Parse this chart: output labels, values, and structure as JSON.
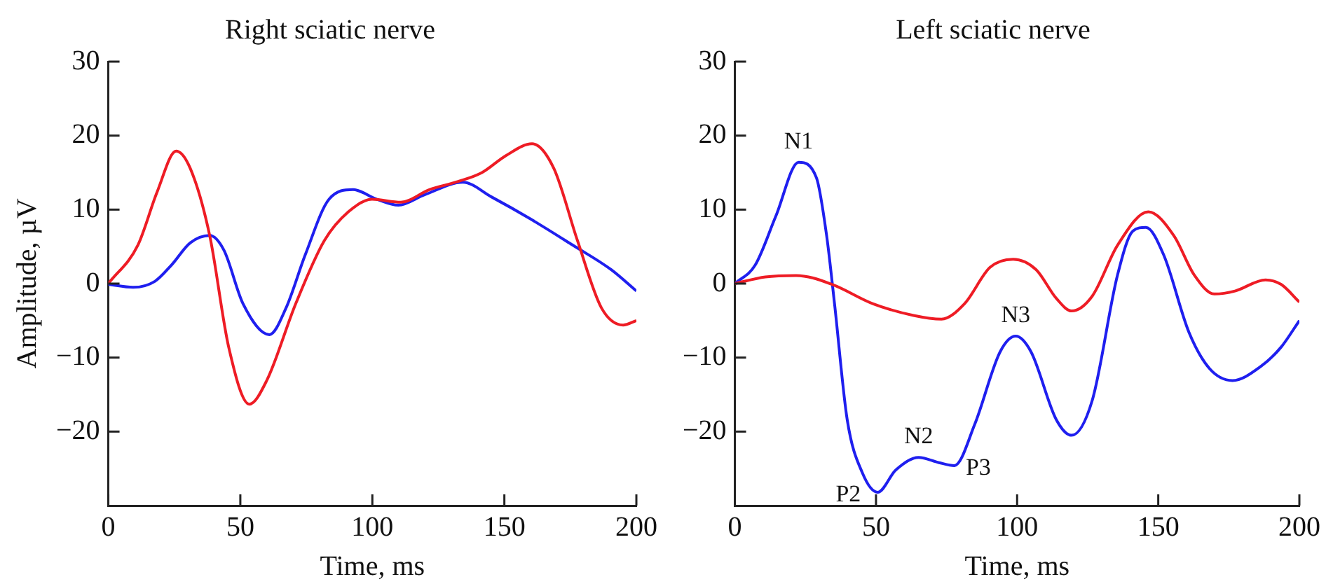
{
  "chart_data": [
    {
      "type": "line",
      "title": "Right sciatic nerve",
      "xlabel": "Time, ms",
      "ylabel": "Amplitude, µV",
      "xlim": [
        0,
        200
      ],
      "xticks": [
        0,
        50,
        100,
        150,
        200
      ],
      "ylim": [
        -30,
        30
      ],
      "yticks": [
        -20,
        -10,
        0,
        10,
        20,
        30
      ],
      "grid": false,
      "legend": false,
      "marker": "none",
      "line_style": "solid",
      "series": [
        {
          "color": "#ee1c25",
          "x": [
            0,
            11.2,
            18.5,
            25.7,
            31,
            38.4,
            45.6,
            53.4,
            60,
            71,
            81.8,
            90.9,
            99.9,
            110.8,
            121.6,
            132.5,
            141.5,
            150.6,
            160.5,
            168.7,
            177.7,
            186.8,
            195,
            200
          ],
          "values": [
            0,
            5.2,
            12.4,
            17.9,
            15.6,
            6.5,
            -8.6,
            -16.3,
            -13.1,
            -2.7,
            5.8,
            9.7,
            11.4,
            11,
            12.7,
            13.8,
            15,
            17.3,
            18.9,
            15.6,
            5.8,
            -3.3,
            -5.6,
            -5
          ]
        },
        {
          "color": "#1f1fef",
          "x": [
            0,
            9.4,
            17.6,
            23.9,
            31,
            38.4,
            43.8,
            51,
            61,
            67.3,
            74.6,
            83.6,
            92.7,
            101.7,
            109.9,
            119.8,
            134.3,
            145.2,
            159.6,
            175.9,
            190.4,
            200
          ],
          "values": [
            -0.1,
            -0.5,
            0.3,
            2.5,
            5.5,
            6.5,
            4.5,
            -2.7,
            -6.9,
            -3.3,
            3.9,
            11.4,
            12.7,
            11.4,
            10.6,
            12,
            13.7,
            11.7,
            8.8,
            5.2,
            1.9,
            -1
          ]
        }
      ]
    },
    {
      "type": "line",
      "title": "Left sciatic nerve",
      "xlabel": "Time, ms",
      "xlim": [
        0,
        200
      ],
      "xticks": [
        0,
        50,
        100,
        150,
        200
      ],
      "ylim": [
        -30,
        30
      ],
      "yticks": [
        -20,
        -10,
        0,
        10,
        20,
        30
      ],
      "grid": false,
      "legend": false,
      "marker": "none",
      "line_style": "solid",
      "annotations": [
        {
          "text": "N1",
          "x": 22.6,
          "y": 16.4
        },
        {
          "text": "P2",
          "x": 50.6,
          "y": -28.2
        },
        {
          "text": "N2",
          "x": 65.1,
          "y": -23.5
        },
        {
          "text": "P3",
          "x": 77.8,
          "y": -24.6
        },
        {
          "text": "N3",
          "x": 99.5,
          "y": -7.1
        }
      ],
      "series": [
        {
          "color": "#ee1c25",
          "x": [
            0,
            10.8,
            21.7,
            34.4,
            48.8,
            63.3,
            73.2,
            81.4,
            90.4,
            98.6,
            106.7,
            113.9,
            119.3,
            126.6,
            135.6,
            146.5,
            155.5,
            162.7,
            169.9,
            177.2,
            188,
            193.5,
            200
          ],
          "values": [
            0,
            0.9,
            1.1,
            -0.1,
            -2.7,
            -4.3,
            -4.8,
            -2.7,
            2.2,
            3.3,
            1.9,
            -2,
            -3.7,
            -1.7,
            5.2,
            9.7,
            6.5,
            1.2,
            -1.4,
            -1,
            0.5,
            -0.1,
            -2.5
          ]
        },
        {
          "color": "#1f1fef",
          "x": [
            0,
            7.2,
            14.5,
            22.6,
            28.9,
            32.5,
            35.3,
            39.8,
            45.2,
            50.6,
            57,
            65.1,
            72.3,
            77.8,
            85,
            94,
            99.5,
            104.9,
            113.9,
            119.3,
            126.6,
            135.6,
            141,
            145.6,
            151.9,
            160.9,
            168.2,
            176.3,
            186.3,
            193.5,
            200
          ],
          "values": [
            0,
            2.5,
            9.1,
            16.4,
            14.3,
            6.5,
            -2.7,
            -18.4,
            -25.6,
            -28.2,
            -25.2,
            -23.5,
            -24.2,
            -24.6,
            -19,
            -9.2,
            -7.1,
            -9.2,
            -18.4,
            -20.5,
            -15.8,
            1.2,
            7.1,
            7.6,
            3.9,
            -6.6,
            -11.5,
            -13.1,
            -11.2,
            -8.6,
            -5
          ]
        }
      ]
    }
  ]
}
